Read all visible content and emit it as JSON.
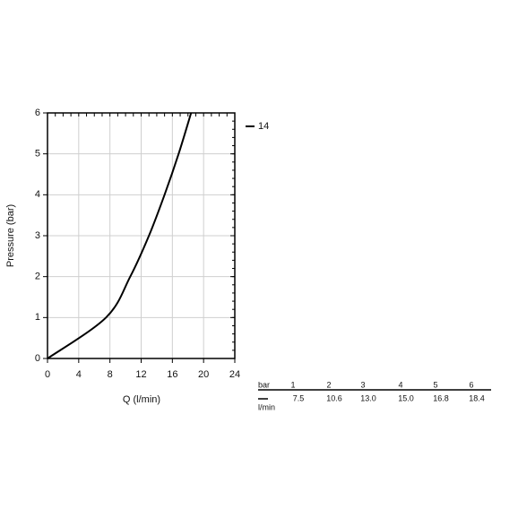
{
  "chart_data": {
    "type": "line",
    "xlabel": "Q (l/min)",
    "ylabel": "Pressure (bar)",
    "x": [
      0,
      7.5,
      10.6,
      13,
      15,
      16.8,
      18.4
    ],
    "series": [
      {
        "name": "14",
        "color": "#000000",
        "values": [
          0,
          1,
          2,
          3,
          4,
          5,
          6
        ]
      }
    ],
    "xlim": [
      0,
      24
    ],
    "xticks": [
      0,
      4,
      8,
      12,
      16,
      20,
      24
    ],
    "ylim": [
      0,
      6
    ],
    "yticks": [
      0,
      1,
      2,
      3,
      4,
      5,
      6
    ],
    "grid": true
  },
  "table": {
    "row_labels": [
      "bar",
      "l/min"
    ],
    "pressure": [
      1,
      2,
      3,
      4,
      5,
      6
    ],
    "flow": [
      "7.5",
      "10.6",
      "13.0",
      "15.0",
      "16.8",
      "18.4"
    ]
  }
}
